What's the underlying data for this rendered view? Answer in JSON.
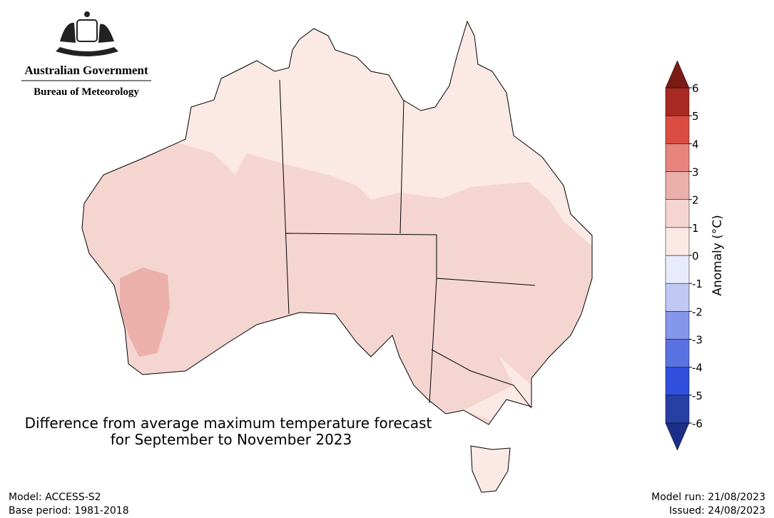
{
  "header": {
    "government": "Australian Government",
    "agency": "Bureau of Meteorology"
  },
  "map": {
    "title": [
      "Difference from average maximum temperature forecast",
      "for September to November 2023"
    ]
  },
  "colorbar": {
    "label": "Anomaly (°C)",
    "ticks": [
      -6,
      -5,
      -4,
      -3,
      -2,
      -1,
      0,
      1,
      2,
      3,
      4,
      5,
      6
    ],
    "colors": [
      "#283fa6",
      "#2f4fdc",
      "#5a73e3",
      "#8597eb",
      "#c0c8f4",
      "#e8ebfb",
      "#fbe9e6",
      "#f4d5d0",
      "#ebb0aa",
      "#e6847d",
      "#db4d42",
      "#a82a22"
    ],
    "under_color": "#1c2f88",
    "over_color": "#7b1a15"
  },
  "footer": {
    "model": "Model: ACCESS-S2",
    "base_period": "Base period: 1981-2018",
    "model_run": "Model run: 21/08/2023",
    "issued": "Issued: 24/08/2023"
  }
}
